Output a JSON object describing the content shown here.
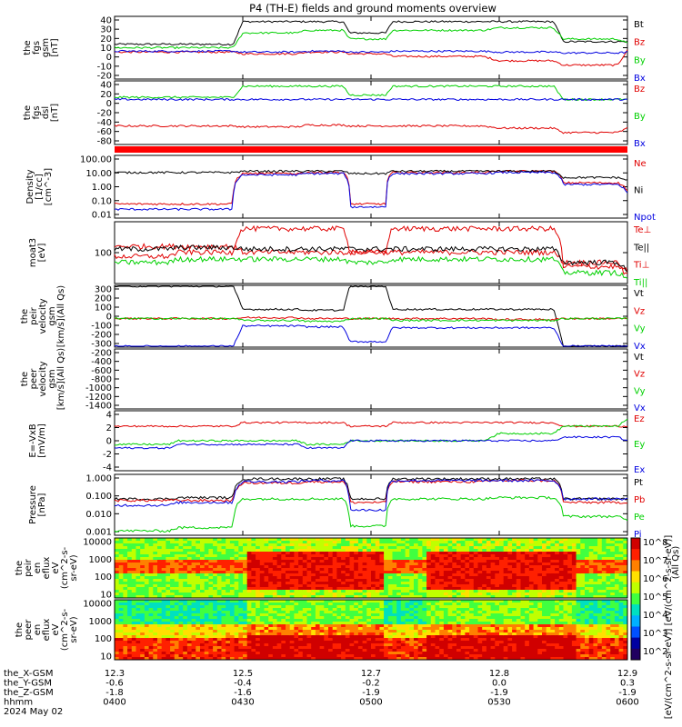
{
  "title": "P4 (TH-E) fields and ground moments overview",
  "colors": {
    "black": "#000000",
    "red": "#e00000",
    "green": "#00d000",
    "blue": "#0000e0"
  },
  "panels": [
    {
      "id": "fgs",
      "ylabel": [
        "the",
        "fgs",
        "gsm",
        "[nT]"
      ],
      "yticks": [
        "40",
        "30",
        "20",
        "10",
        "0",
        "-10",
        "-20"
      ],
      "legend": [
        {
          "text": "Bt",
          "color": "black"
        },
        {
          "text": "Bz",
          "color": "red"
        },
        {
          "text": "By",
          "color": "green"
        },
        {
          "text": "Bx",
          "color": "blue"
        }
      ]
    },
    {
      "id": "fgs-dsl",
      "ylabel": [
        "the",
        "fgs",
        "dsl",
        "[nT]"
      ],
      "yticks": [
        "40",
        "20",
        "0",
        "-20",
        "-40",
        "-60",
        "-80"
      ],
      "legend": [
        {
          "text": "Bz",
          "color": "red"
        },
        {
          "text": "By",
          "color": "green"
        },
        {
          "text": "Bx",
          "color": "blue"
        }
      ]
    },
    {
      "id": "density",
      "ylabel": [
        "Density",
        "[1/cc]",
        "[cm^-3]"
      ],
      "yticks": [
        "100.00",
        "10.00",
        "1.00",
        "0.10",
        "0.01"
      ],
      "legend": [
        {
          "text": "Ne",
          "color": "red"
        },
        {
          "text": "Ni",
          "color": "black"
        },
        {
          "text": "Npot",
          "color": "blue"
        }
      ]
    },
    {
      "id": "temp",
      "ylabel": [
        "moat3",
        "[eV]"
      ],
      "yticks": [
        "100"
      ],
      "legend": [
        {
          "text": "Te⊥",
          "color": "red"
        },
        {
          "text": "Te||",
          "color": "black"
        },
        {
          "text": "Ti⊥",
          "color": "red"
        },
        {
          "text": "Ti||",
          "color": "green"
        }
      ]
    },
    {
      "id": "peir-vel",
      "ylabel": [
        "the",
        "peir",
        "velocity",
        "gsm",
        "[km/s](All Qs)"
      ],
      "yticks": [
        "300",
        "200",
        "100",
        "0",
        "-100",
        "-200",
        "-300"
      ],
      "legend": [
        {
          "text": "Vt",
          "color": "black"
        },
        {
          "text": "Vz",
          "color": "red"
        },
        {
          "text": "Vy",
          "color": "green"
        },
        {
          "text": "Vx",
          "color": "blue"
        }
      ]
    },
    {
      "id": "peer-vel",
      "ylabel": [
        "the",
        "peer",
        "velocity",
        "gsm",
        "[km/s](All Qs)"
      ],
      "yticks": [
        "-200",
        "-400",
        "-600",
        "-800",
        "-1000",
        "-1200",
        "-1400"
      ],
      "legend": [
        {
          "text": "Vt",
          "color": "black"
        },
        {
          "text": "Vz",
          "color": "red"
        },
        {
          "text": "Vy",
          "color": "green"
        },
        {
          "text": "Vx",
          "color": "blue"
        }
      ]
    },
    {
      "id": "efield",
      "ylabel": [
        "E=-VxB",
        "[mV/m]"
      ],
      "yticks": [
        "4",
        "2",
        "0",
        "-2",
        "-4"
      ],
      "legend": [
        {
          "text": "Ez",
          "color": "red"
        },
        {
          "text": "Ey",
          "color": "green"
        },
        {
          "text": "Ex",
          "color": "blue"
        }
      ]
    },
    {
      "id": "pressure",
      "ylabel": [
        "Pressure",
        "[nPa]"
      ],
      "yticks": [
        "1.000",
        "0.100",
        "0.010",
        "0.001"
      ],
      "legend": [
        {
          "text": "Pt",
          "color": "black"
        },
        {
          "text": "Pb",
          "color": "red"
        },
        {
          "text": "Pe",
          "color": "green"
        },
        {
          "text": "Pi",
          "color": "blue"
        }
      ],
      "side_note": "(All Qs)"
    },
    {
      "id": "peir-eflux",
      "ylabel": [
        "the",
        "peir",
        "en",
        "eflux",
        "eV",
        "(cm^2-s-",
        "sr-eV)"
      ],
      "yticks": [
        "10000",
        "1000",
        "100",
        "10"
      ]
    },
    {
      "id": "peer-eflux",
      "ylabel": [
        "the",
        "peer",
        "en",
        "eflux",
        "eV",
        "(cm^2-s-",
        "sr-eV)"
      ],
      "yticks": [
        "10000",
        "1000",
        "100",
        "10"
      ]
    }
  ],
  "colorbar": {
    "ticks": [
      "10^8",
      "10^7",
      "10^6",
      "10^5",
      "10^4",
      "10^3",
      "10^2"
    ],
    "label": "[eV/(cm^2-s-sr-eV)] [eV/(cm^2-s-sr-eV)]"
  },
  "xaxis": {
    "rows": [
      {
        "name": "the_X-GSM",
        "values": [
          "12.3",
          "12.5",
          "12.7",
          "12.8",
          "12.9"
        ]
      },
      {
        "name": "the_Y-GSM",
        "values": [
          "-0.6",
          "-0.4",
          "-0.2",
          "0.0",
          "0.3"
        ]
      },
      {
        "name": "the_Z-GSM",
        "values": [
          "-1.8",
          "-1.6",
          "-1.9",
          "-1.9",
          "-1.9"
        ]
      },
      {
        "name": "hhmm",
        "values": [
          "0400",
          "0430",
          "0500",
          "0530",
          "0600"
        ]
      }
    ],
    "date": "2024 May 02"
  },
  "chart_data": [
    {
      "type": "line",
      "series": [
        {
          "name": "Bt",
          "values": [
            9,
            9,
            35,
            35,
            22,
            35,
            35,
            12,
            12
          ]
        },
        {
          "name": "Bz",
          "values": [
            0,
            0,
            -2,
            0,
            -2,
            -5,
            -10,
            -15,
            3
          ]
        },
        {
          "name": "By",
          "values": [
            5,
            5,
            22,
            25,
            15,
            25,
            28,
            15,
            10
          ]
        },
        {
          "name": "Bx",
          "values": [
            1,
            1,
            0,
            1,
            0,
            1,
            0,
            -1,
            0
          ]
        }
      ],
      "x": [
        "0400",
        "0415",
        "0430",
        "0445",
        "0455",
        "0505",
        "0530",
        "0545",
        "0600"
      ],
      "ylim": [
        -30,
        40
      ]
    },
    {
      "type": "line",
      "series": [
        {
          "name": "Bz",
          "values": [
            -60,
            -60,
            -62,
            -58,
            -60,
            -60,
            -65,
            -75,
            -65
          ]
        },
        {
          "name": "By",
          "values": [
            5,
            5,
            30,
            30,
            10,
            30,
            30,
            0,
            0
          ]
        },
        {
          "name": "Bx",
          "values": [
            0,
            0,
            0,
            0,
            0,
            0,
            0,
            0,
            0
          ]
        }
      ],
      "x": [
        "0400",
        "0415",
        "0430",
        "0445",
        "0455",
        "0505",
        "0530",
        "0545",
        "0600"
      ],
      "ylim": [
        -100,
        40
      ]
    },
    {
      "type": "line",
      "series": [
        {
          "name": "Ne",
          "values": [
            0.05,
            0.05,
            10,
            12,
            0.05,
            12,
            15,
            2,
            0.5
          ]
        },
        {
          "name": "Ni",
          "values": [
            12,
            12,
            15,
            15,
            10,
            15,
            15,
            5,
            3
          ]
        },
        {
          "name": "Npot",
          "values": [
            0.02,
            0.02,
            8,
            10,
            0.03,
            10,
            12,
            1.5,
            0.3
          ]
        }
      ],
      "x": [
        "0400",
        "0415",
        "0430",
        "0445",
        "0455",
        "0505",
        "0530",
        "0545",
        "0600"
      ],
      "ylim": [
        0.005,
        200
      ],
      "log": true
    },
    {
      "type": "line",
      "series": [
        {
          "name": "Te⊥",
          "values": [
            60,
            60,
            40,
            40,
            40,
            40,
            40,
            20,
            10
          ]
        },
        {
          "name": "Te||",
          "values": [
            50,
            55,
            50,
            50,
            50,
            50,
            50,
            20,
            10
          ]
        },
        {
          "name": "Ti⊥",
          "values": [
            30,
            40,
            200,
            200,
            40,
            200,
            200,
            15,
            8
          ]
        },
        {
          "name": "Ti||",
          "values": [
            20,
            25,
            25,
            25,
            20,
            25,
            25,
            10,
            6
          ]
        }
      ],
      "x": [
        "0400",
        "0415",
        "0430",
        "0445",
        "0455",
        "0505",
        "0530",
        "0545",
        "0600"
      ],
      "ylim": [
        5,
        300
      ],
      "log": true
    },
    {
      "type": "line",
      "series": [
        {
          "name": "Vt",
          "values": [
            350,
            350,
            100,
            90,
            350,
            100,
            100,
            -300,
            -300
          ]
        },
        {
          "name": "Vz",
          "values": [
            0,
            0,
            10,
            0,
            0,
            0,
            -10,
            0,
            0
          ]
        },
        {
          "name": "Vy",
          "values": [
            0,
            0,
            -20,
            -30,
            0,
            -20,
            -20,
            0,
            0
          ]
        },
        {
          "name": "Vx",
          "values": [
            -300,
            -300,
            -80,
            -90,
            -250,
            -100,
            -100,
            -300,
            -300
          ]
        }
      ],
      "x": [
        "0400",
        "0415",
        "0430",
        "0445",
        "0455",
        "0505",
        "0530",
        "0545",
        "0600"
      ],
      "ylim": [
        -300,
        350
      ]
    },
    {
      "type": "line",
      "series": [],
      "x": [],
      "ylim": [
        -1500,
        -100
      ]
    },
    {
      "type": "line",
      "series": [
        {
          "name": "Ez",
          "values": [
            2,
            2,
            2.5,
            2.5,
            2,
            2.5,
            2.5,
            2,
            2
          ]
        },
        {
          "name": "Ey",
          "values": [
            -0.5,
            0,
            0,
            -0.5,
            0,
            0,
            1,
            2,
            3
          ]
        },
        {
          "name": "Ex",
          "values": [
            -1,
            -0.5,
            -0.5,
            -1,
            0,
            0,
            0,
            0.5,
            0
          ]
        }
      ],
      "x": [
        "0400",
        "0415",
        "0430",
        "0445",
        "0455",
        "0505",
        "0530",
        "0545",
        "0600"
      ],
      "ylim": [
        -4,
        4
      ]
    },
    {
      "type": "line",
      "series": [
        {
          "name": "Pt",
          "values": [
            0.05,
            0.06,
            0.9,
            0.9,
            0.05,
            0.9,
            0.9,
            0.05,
            0.05
          ]
        },
        {
          "name": "Pb",
          "values": [
            0.04,
            0.04,
            0.5,
            0.6,
            0.03,
            0.6,
            0.7,
            0.03,
            0.03
          ]
        },
        {
          "name": "Pe",
          "values": [
            0.0005,
            0.0008,
            0.05,
            0.05,
            0.001,
            0.05,
            0.06,
            0.004,
            0.002
          ]
        },
        {
          "name": "Pi",
          "values": [
            0.02,
            0.03,
            0.6,
            0.7,
            0.01,
            0.7,
            0.7,
            0.05,
            0.05
          ]
        }
      ],
      "x": [
        "0400",
        "0415",
        "0430",
        "0445",
        "0455",
        "0505",
        "0530",
        "0545",
        "0600"
      ],
      "ylim": [
        0.0003,
        1.5
      ],
      "log": true
    },
    {
      "type": "heatmap",
      "x": [
        "0400",
        "0430",
        "0500",
        "0530",
        "0600"
      ],
      "ylim": [
        10,
        20000
      ],
      "log": true
    },
    {
      "type": "heatmap",
      "x": [
        "0400",
        "0430",
        "0500",
        "0530",
        "0600"
      ],
      "ylim": [
        10,
        20000
      ],
      "log": true
    }
  ]
}
